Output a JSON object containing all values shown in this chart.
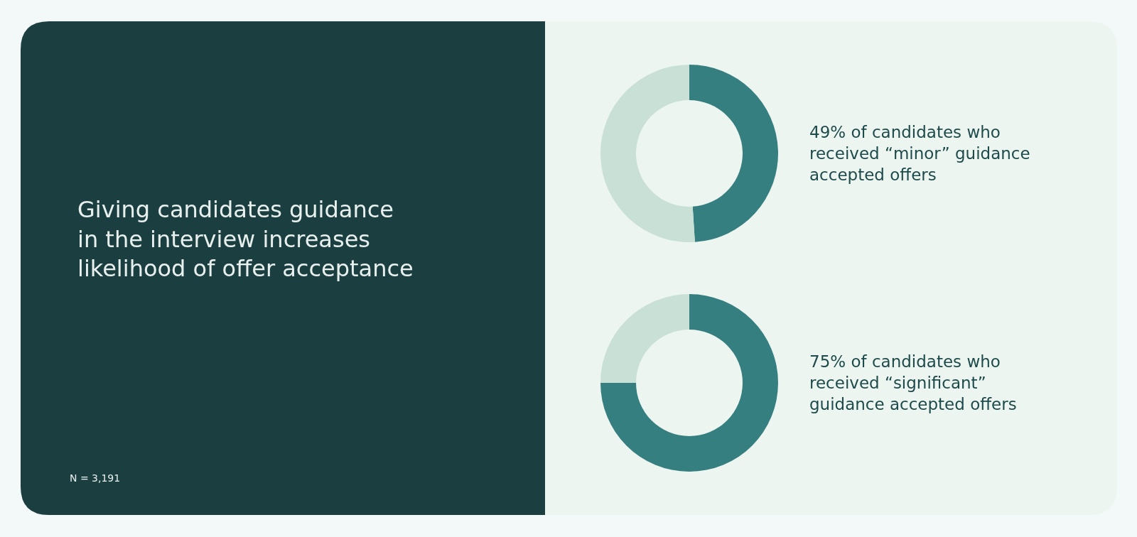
{
  "chart_data": [
    {
      "type": "other",
      "title": "Giving candidates guidance\nin the interview increases\nlikelihood of offer acceptance",
      "annotations": [
        "N = 3,191"
      ]
    },
    {
      "type": "donut",
      "categories": [
        null,
        null
      ],
      "values": [
        49,
        51
      ],
      "colors": [
        "#367f81",
        "#c8e0d6"
      ],
      "annotations": [
        "49% of candidates who\nreceived “minor” guidance\naccepted offers"
      ]
    },
    {
      "type": "donut",
      "categories": [
        null,
        null
      ],
      "values": [
        75,
        25
      ],
      "colors": [
        "#367f81",
        "#c8e0d6"
      ],
      "annotations": [
        "75% of candidates who\nreceived “significant”\nguidance accepted offers"
      ]
    }
  ]
}
